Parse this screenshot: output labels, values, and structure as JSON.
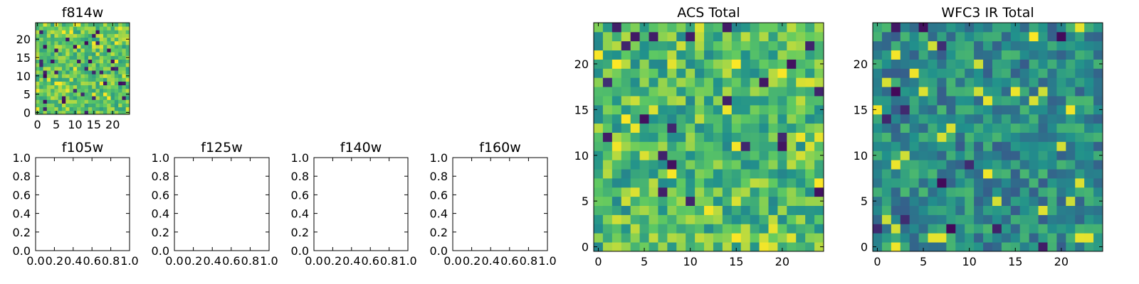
{
  "colors": {
    "background": "#ffffff",
    "axes": "#000000",
    "colormap": [
      "#440154",
      "#3b528b",
      "#21918c",
      "#5ec962",
      "#fde725"
    ]
  },
  "chart_data": [
    {
      "type": "heatmap",
      "title": "f814w",
      "xlim": [
        -0.5,
        24.5
      ],
      "ylim": [
        -0.5,
        24.5
      ],
      "xticks": [
        0,
        5,
        10,
        15,
        20
      ],
      "yticks": [
        0,
        5,
        10,
        15,
        20
      ],
      "xticklabels": [
        "0",
        "5",
        "10",
        "15",
        "20"
      ],
      "yticklabels": [
        "0",
        "5",
        "10",
        "15",
        "20"
      ],
      "grid_size": 25,
      "seed": 814,
      "base": 0.73,
      "spread": 0.11,
      "dark_fraction": 0.045
    },
    {
      "type": "heatmap",
      "title": "f105w",
      "empty": true,
      "xlim": [
        0.0,
        1.0
      ],
      "ylim": [
        0.0,
        1.0
      ],
      "xticks": [
        0.0,
        0.2,
        0.4,
        0.6,
        0.8,
        1.0
      ],
      "yticks": [
        0.0,
        0.2,
        0.4,
        0.6,
        0.8,
        1.0
      ],
      "xticklabels": [
        "0.0",
        "0.2",
        "0.4",
        "0.6",
        "0.8",
        "1.0"
      ],
      "yticklabels": [
        "0.0",
        "0.2",
        "0.4",
        "0.6",
        "0.8",
        "1.0"
      ]
    },
    {
      "type": "heatmap",
      "title": "f125w",
      "empty": true,
      "xlim": [
        0.0,
        1.0
      ],
      "ylim": [
        0.0,
        1.0
      ],
      "xticks": [
        0.0,
        0.2,
        0.4,
        0.6,
        0.8,
        1.0
      ],
      "yticks": [
        0.0,
        0.2,
        0.4,
        0.6,
        0.8,
        1.0
      ],
      "xticklabels": [
        "0.0",
        "0.2",
        "0.4",
        "0.6",
        "0.8",
        "1.0"
      ],
      "yticklabels": [
        "0.0",
        "0.2",
        "0.4",
        "0.6",
        "0.8",
        "1.0"
      ]
    },
    {
      "type": "heatmap",
      "title": "f140w",
      "empty": true,
      "xlim": [
        0.0,
        1.0
      ],
      "ylim": [
        0.0,
        1.0
      ],
      "xticks": [
        0.0,
        0.2,
        0.4,
        0.6,
        0.8,
        1.0
      ],
      "yticks": [
        0.0,
        0.2,
        0.4,
        0.6,
        0.8,
        1.0
      ],
      "xticklabels": [
        "0.0",
        "0.2",
        "0.4",
        "0.6",
        "0.8",
        "1.0"
      ],
      "yticklabels": [
        "0.0",
        "0.2",
        "0.4",
        "0.6",
        "0.8",
        "1.0"
      ]
    },
    {
      "type": "heatmap",
      "title": "f160w",
      "empty": true,
      "xlim": [
        0.0,
        1.0
      ],
      "ylim": [
        0.0,
        1.0
      ],
      "xticks": [
        0.0,
        0.2,
        0.4,
        0.6,
        0.8,
        1.0
      ],
      "yticks": [
        0.0,
        0.2,
        0.4,
        0.6,
        0.8,
        1.0
      ],
      "xticklabels": [
        "0.0",
        "0.2",
        "0.4",
        "0.6",
        "0.8",
        "1.0"
      ],
      "yticklabels": [
        "0.0",
        "0.2",
        "0.4",
        "0.6",
        "0.8",
        "1.0"
      ]
    },
    {
      "type": "heatmap",
      "title": "ACS Total",
      "xlim": [
        -0.5,
        24.5
      ],
      "ylim": [
        -0.5,
        24.5
      ],
      "xticks": [
        0,
        5,
        10,
        15,
        20
      ],
      "yticks": [
        0,
        5,
        10,
        15,
        20
      ],
      "xticklabels": [
        "0",
        "5",
        "10",
        "15",
        "20"
      ],
      "yticklabels": [
        "0",
        "5",
        "10",
        "15",
        "20"
      ],
      "grid_size": 25,
      "seed": 2001,
      "base": 0.68,
      "spread": 0.14,
      "dark_fraction": 0.035
    },
    {
      "type": "heatmap",
      "title": "WFC3 IR Total",
      "xlim": [
        -0.5,
        24.5
      ],
      "ylim": [
        -0.5,
        24.5
      ],
      "xticks": [
        0,
        5,
        10,
        15,
        20
      ],
      "yticks": [
        0,
        5,
        10,
        15,
        20
      ],
      "xticklabels": [
        "0",
        "5",
        "10",
        "15",
        "20"
      ],
      "yticklabels": [
        "0",
        "5",
        "10",
        "15",
        "20"
      ],
      "grid_size": 25,
      "seed": 3003,
      "base": 0.48,
      "spread": 0.12,
      "dark_fraction": 0.03
    }
  ]
}
